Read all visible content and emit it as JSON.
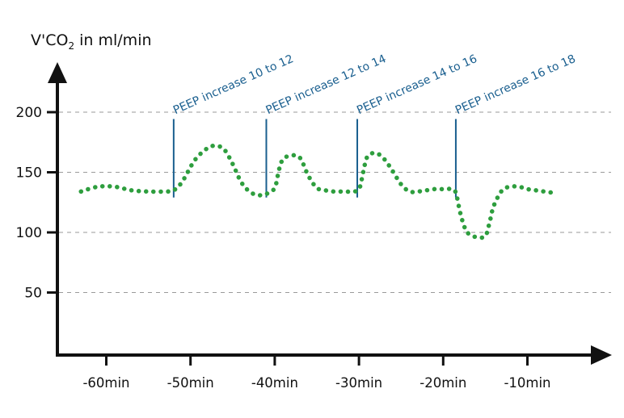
{
  "chart_data": {
    "type": "line",
    "ylabel": {
      "prefix": "V'CO",
      "sub": "2",
      "suffix": " in ml/min"
    },
    "xlabel": "",
    "y_ticks": [
      {
        "value": 50,
        "label": "50"
      },
      {
        "value": 100,
        "label": "100"
      },
      {
        "value": 150,
        "label": "150"
      },
      {
        "value": 200,
        "label": "200"
      }
    ],
    "x_ticks": [
      {
        "value": -60,
        "label": "-60min"
      },
      {
        "value": -50,
        "label": "-50min"
      },
      {
        "value": -40,
        "label": "-40min"
      },
      {
        "value": -30,
        "label": "-30min"
      },
      {
        "value": -20,
        "label": "-20min"
      },
      {
        "value": -10,
        "label": "-10min"
      }
    ],
    "xlim": [
      -63,
      -7
    ],
    "ylim": [
      0,
      200
    ],
    "grid": "horizontal dashed",
    "series": [
      {
        "color": "#2e9e3e",
        "style": "dotted",
        "x": [
          -63,
          -61,
          -59,
          -57,
          -55,
          -53,
          -52,
          -51,
          -49.5,
          -48,
          -47,
          -46,
          -45,
          -44,
          -43,
          -42,
          -41,
          -40,
          -39.5,
          -39,
          -38,
          -37,
          -36,
          -35,
          -34,
          -33,
          -32,
          -31,
          -30,
          -29.5,
          -29,
          -28,
          -27,
          -26,
          -25,
          -24,
          -23,
          -22,
          -21,
          -20,
          -19,
          -18.5,
          -18,
          -17.5,
          -17,
          -16,
          -15,
          -14.5,
          -14,
          -13,
          -12,
          -11,
          -10,
          -9,
          -8,
          -7
        ],
        "y": [
          134,
          138,
          138,
          135,
          134,
          134,
          135,
          142,
          160,
          170,
          172,
          169,
          157,
          142,
          134,
          131,
          132,
          137,
          152,
          161,
          164,
          162,
          147,
          137,
          135,
          134,
          134,
          134,
          136,
          150,
          163,
          166,
          161,
          151,
          140,
          134,
          134,
          135,
          136,
          136,
          136,
          133,
          117,
          105,
          99,
          96,
          97,
          108,
          122,
          135,
          138,
          138,
          136,
          135,
          134,
          133
        ]
      }
    ],
    "annotations": [
      {
        "x": -52,
        "y_top": 197,
        "label": "PEEP increase 10 to 12"
      },
      {
        "x": -41,
        "y_top": 197,
        "label": "PEEP increase 12 to 14"
      },
      {
        "x": -30.2,
        "y_top": 197,
        "label": "PEEP increase 14 to 16"
      },
      {
        "x": -18.5,
        "y_top": 197,
        "label": "PEEP increase 16 to 18"
      }
    ],
    "colors": {
      "axis": "#111111",
      "grid": "#9a9a9a",
      "line": "#2e9e3e",
      "annotation": "#1a5f8f"
    }
  }
}
